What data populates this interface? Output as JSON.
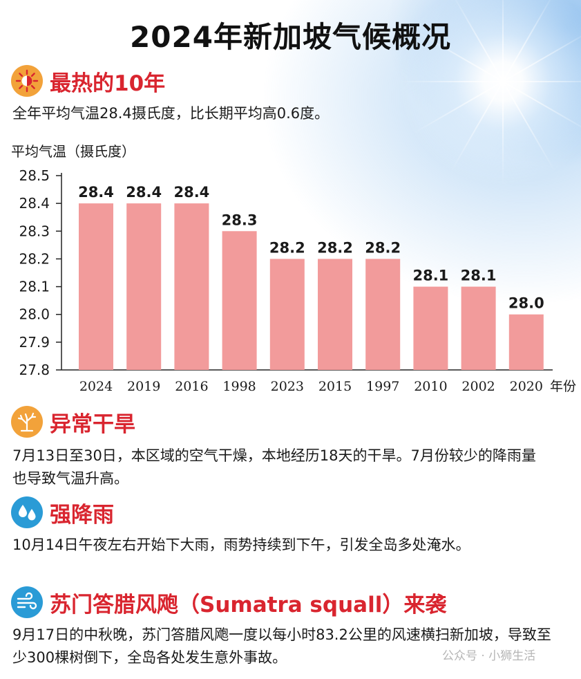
{
  "title": "2024年新加坡气候概况",
  "sections": {
    "hottest": {
      "title": "最热的10年",
      "text": "全年平均气温28.4摄氏度，比长期平均高0.6度。",
      "icon": "sun-icon",
      "icon_color": "#f2a23a"
    },
    "drought": {
      "title": "异常干旱",
      "text": "7月13日至30日，本区域的空气干燥，本地经历18天的干旱。7月份较少的降雨量也导致气温升高。",
      "icon": "dry-tree-icon",
      "icon_color": "#f2a23a"
    },
    "rain": {
      "title": "强降雨",
      "text": "10月14日午夜左右开始下大雨，雨势持续到下午，引发全岛多处淹水。",
      "icon": "raindrops-icon",
      "icon_color": "#2a9bd6"
    },
    "squall": {
      "title": "苏门答腊风飑（Sumatra squall）来袭",
      "text": "9月17日的中秋晚，苏门答腊风飑一度以每小时83.2公里的风速横扫新加坡，导致至少300棵树倒下，全岛各处发生意外事故。",
      "icon": "wind-icon",
      "icon_color": "#2a9bd6"
    }
  },
  "chart_data": {
    "type": "bar",
    "ylabel": "平均气温（摄氏度）",
    "xlabel": "年份",
    "categories": [
      "2024",
      "2019",
      "2016",
      "1998",
      "2023",
      "2015",
      "1997",
      "2010",
      "2002",
      "2020"
    ],
    "values": [
      28.4,
      28.4,
      28.4,
      28.3,
      28.2,
      28.2,
      28.2,
      28.1,
      28.1,
      28.0
    ],
    "data_labels": [
      "28.4",
      "28.4",
      "28.4",
      "28.3",
      "28.2",
      "28.2",
      "28.2",
      "28.1",
      "28.1",
      "28.0"
    ],
    "ylim": [
      27.8,
      28.5
    ],
    "yticks": [
      "28.5",
      "28.4",
      "28.3",
      "28.2",
      "28.1",
      "28.0",
      "27.9",
      "27.8"
    ],
    "bar_color": "#f29b9b",
    "grid": false
  },
  "watermark": "公众号 · 小狮生活"
}
